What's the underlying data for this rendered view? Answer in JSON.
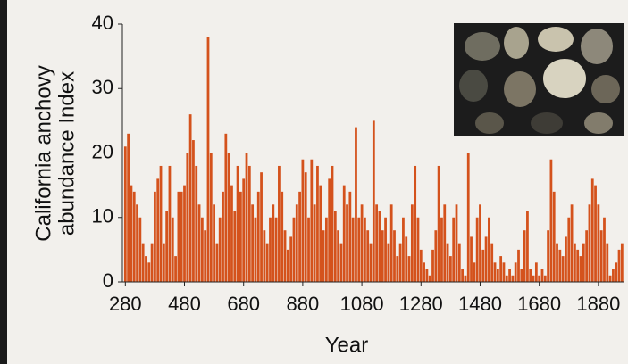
{
  "chart_data": {
    "type": "bar",
    "x_label": "Year",
    "y_label": [
      "California anchovy",
      "abundance Index"
    ],
    "x": [
      280,
      290,
      300,
      310,
      320,
      330,
      340,
      350,
      360,
      370,
      380,
      390,
      400,
      410,
      420,
      430,
      440,
      450,
      460,
      470,
      480,
      490,
      500,
      510,
      520,
      530,
      540,
      550,
      560,
      570,
      580,
      590,
      600,
      610,
      620,
      630,
      640,
      650,
      660,
      670,
      680,
      690,
      700,
      710,
      720,
      730,
      740,
      750,
      760,
      770,
      780,
      790,
      800,
      810,
      820,
      830,
      840,
      850,
      860,
      870,
      880,
      890,
      900,
      910,
      920,
      930,
      940,
      950,
      960,
      970,
      980,
      990,
      1000,
      1010,
      1020,
      1030,
      1040,
      1050,
      1060,
      1070,
      1080,
      1090,
      1100,
      1110,
      1120,
      1130,
      1140,
      1150,
      1160,
      1170,
      1180,
      1190,
      1200,
      1210,
      1220,
      1230,
      1240,
      1250,
      1260,
      1270,
      1280,
      1290,
      1300,
      1310,
      1320,
      1330,
      1340,
      1350,
      1360,
      1370,
      1380,
      1390,
      1400,
      1410,
      1420,
      1430,
      1440,
      1450,
      1460,
      1470,
      1480,
      1490,
      1500,
      1510,
      1520,
      1530,
      1540,
      1550,
      1560,
      1570,
      1580,
      1590,
      1600,
      1610,
      1620,
      1630,
      1640,
      1650,
      1660,
      1670,
      1680,
      1690,
      1700,
      1710,
      1720,
      1730,
      1740,
      1750,
      1760,
      1770,
      1780,
      1790,
      1800,
      1810,
      1820,
      1830,
      1840,
      1850,
      1860,
      1870,
      1880,
      1890,
      1900,
      1910,
      1920,
      1930,
      1940,
      1950,
      1960
    ],
    "values": [
      21,
      23,
      15,
      14,
      12,
      10,
      6,
      4,
      3,
      6,
      14,
      16,
      18,
      6,
      11,
      18,
      10,
      4,
      14,
      14,
      15,
      20,
      26,
      22,
      18,
      12,
      10,
      8,
      38,
      20,
      12,
      6,
      10,
      14,
      23,
      20,
      15,
      11,
      18,
      14,
      16,
      20,
      18,
      12,
      10,
      14,
      17,
      8,
      6,
      10,
      12,
      10,
      18,
      14,
      8,
      5,
      7,
      10,
      12,
      14,
      19,
      17,
      10,
      19,
      12,
      18,
      15,
      8,
      10,
      16,
      18,
      11,
      8,
      6,
      15,
      12,
      14,
      10,
      24,
      10,
      12,
      10,
      8,
      6,
      25,
      12,
      11,
      8,
      10,
      6,
      12,
      8,
      4,
      6,
      10,
      7,
      4,
      12,
      18,
      10,
      5,
      3,
      2,
      1,
      5,
      8,
      18,
      10,
      12,
      6,
      4,
      10,
      12,
      6,
      2,
      1,
      20,
      7,
      3,
      10,
      12,
      5,
      7,
      10,
      6,
      3,
      2,
      4,
      3,
      1,
      2,
      1,
      3,
      5,
      2,
      8,
      11,
      2,
      1,
      3,
      1,
      2,
      1,
      8,
      19,
      14,
      6,
      5,
      4,
      7,
      10,
      12,
      6,
      5,
      4,
      6,
      8,
      12,
      16,
      15,
      12,
      8,
      10,
      6,
      1,
      2,
      3,
      5,
      6
    ],
    "color": "#d4521c",
    "xlim": [
      270,
      1965
    ],
    "ylim": [
      0,
      40
    ],
    "xticks": [
      280,
      480,
      680,
      880,
      1080,
      1280,
      1480,
      1680,
      1880
    ],
    "yticks": [
      0,
      10,
      20,
      30,
      40
    ]
  }
}
